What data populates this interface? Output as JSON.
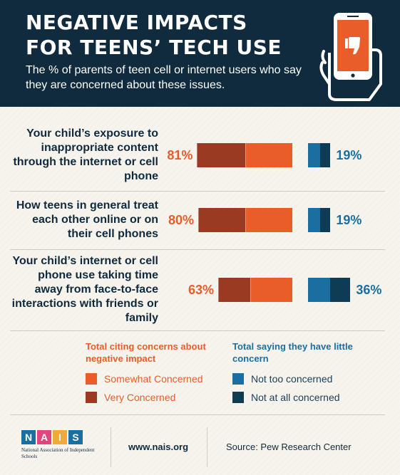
{
  "header": {
    "title": "NEGATIVE IMPACTS\nFOR TEENS’ TECH USE",
    "subtitle": "The % of parents of teen cell or internet users who say they are concerned about these issues."
  },
  "chart_data": {
    "type": "bar",
    "orientation": "diverging-horizontal",
    "categories": [
      "Your child’s exposure to inappropriate content through the internet or cell phone",
      "How teens in general treat each other online or on their cell phones",
      "Your child’s internet or cell phone use taking time away from face-to-face interactions with friends or family"
    ],
    "totals": {
      "concern_labels": [
        "81%",
        "80%",
        "63%"
      ],
      "little_concern_labels": [
        "19%",
        "19%",
        "36%"
      ]
    },
    "series": [
      {
        "name": "Very Concerned",
        "group": "concern",
        "color": "#9a3a22",
        "values": [
          41,
          40,
          27
        ]
      },
      {
        "name": "Somewhat Concerned",
        "group": "concern",
        "color": "#e85d2a",
        "values": [
          40,
          40,
          36
        ]
      },
      {
        "name": "Not too concerned",
        "group": "little",
        "color": "#1b6fa0",
        "values": [
          10,
          10,
          19
        ]
      },
      {
        "name": "Not at all concerned",
        "group": "little",
        "color": "#0f3c55",
        "values": [
          9,
          9,
          17
        ]
      }
    ]
  },
  "legend": {
    "concern_heading": "Total citing concerns about negative impact",
    "little_heading": "Total saying they have little concern",
    "somewhat": "Somewhat Concerned",
    "very": "Very Concerned",
    "not_too": "Not too concerned",
    "not_at_all": "Not at all concerned"
  },
  "colors": {
    "very": "#9a3a22",
    "somewhat": "#e85d2a",
    "not_too": "#1b6fa0",
    "not_at_all": "#0f3c55",
    "header_bg": "#0f2b3d"
  },
  "footer": {
    "logo_letters": [
      "N",
      "A",
      "I",
      "S"
    ],
    "logo_text": "National Association of Independent Schools",
    "site": "www.nais.org",
    "source": "Source: Pew Research Center"
  }
}
